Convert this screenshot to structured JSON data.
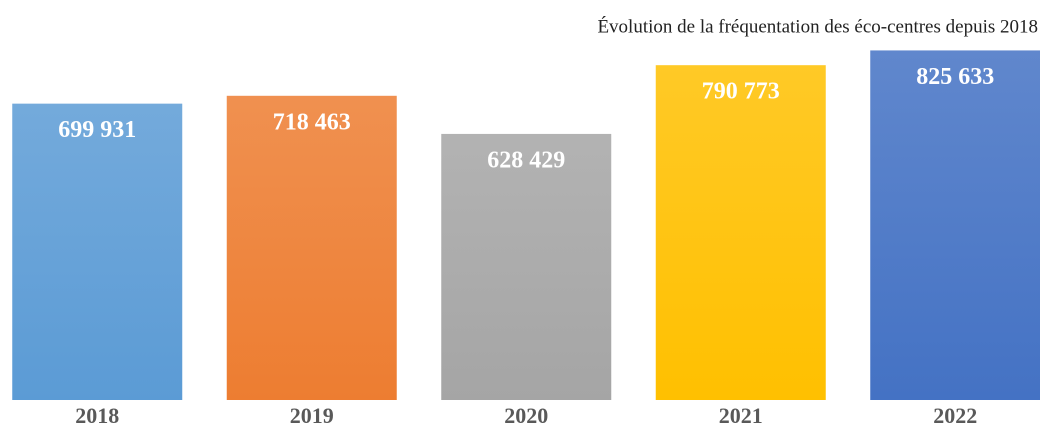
{
  "chart_data": {
    "type": "bar",
    "title": "Évolution de la fréquentation des éco-centres depuis 2018",
    "categories": [
      "2018",
      "2019",
      "2020",
      "2021",
      "2022"
    ],
    "values": [
      699931,
      718463,
      628429,
      790773,
      825633
    ],
    "value_labels": [
      "699 931",
      "718 463",
      "628 429",
      "790 773",
      "825 633"
    ],
    "colors": [
      "#5b9bd5",
      "#ed7d31",
      "#a5a5a5",
      "#ffc000",
      "#4472c4"
    ],
    "ylim": [
      0,
      940000
    ]
  }
}
